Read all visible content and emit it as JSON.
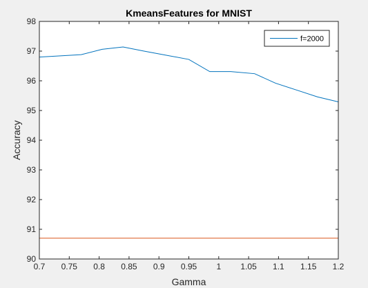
{
  "chart_data": {
    "type": "line",
    "title": "KmeansFeatures for MNIST",
    "xlabel": "Gamma",
    "ylabel": "Accuracy",
    "xlim": [
      0.7,
      1.2
    ],
    "ylim": [
      90,
      98
    ],
    "xticks": [
      0.7,
      0.75,
      0.8,
      0.85,
      0.9,
      0.95,
      1,
      1.05,
      1.1,
      1.15,
      1.2
    ],
    "xtick_labels": [
      "0.7",
      "0.75",
      "0.8",
      "0.85",
      "0.9",
      "0.95",
      "1",
      "1.05",
      "1.1",
      "1.15",
      "1.2"
    ],
    "yticks": [
      90,
      91,
      92,
      93,
      94,
      95,
      96,
      97,
      98
    ],
    "ytick_labels": [
      "90",
      "91",
      "92",
      "93",
      "94",
      "95",
      "96",
      "97",
      "98"
    ],
    "grid": false,
    "legend_position": "top-right",
    "series": [
      {
        "name": "f=2000",
        "color": "#0072bd",
        "in_legend": true,
        "x": [
          0.7,
          0.735,
          0.77,
          0.805,
          0.84,
          0.875,
          0.91,
          0.95,
          0.985,
          1.02,
          1.06,
          1.095,
          1.13,
          1.165,
          1.2
        ],
        "y": [
          96.8,
          96.84,
          96.88,
          97.06,
          97.14,
          97.0,
          96.87,
          96.72,
          96.31,
          96.31,
          96.24,
          95.92,
          95.69,
          95.46,
          95.29
        ]
      },
      {
        "name": "",
        "color": "#d95319",
        "in_legend": false,
        "x": [
          0.7,
          1.2
        ],
        "y": [
          90.7,
          90.7
        ]
      }
    ]
  }
}
